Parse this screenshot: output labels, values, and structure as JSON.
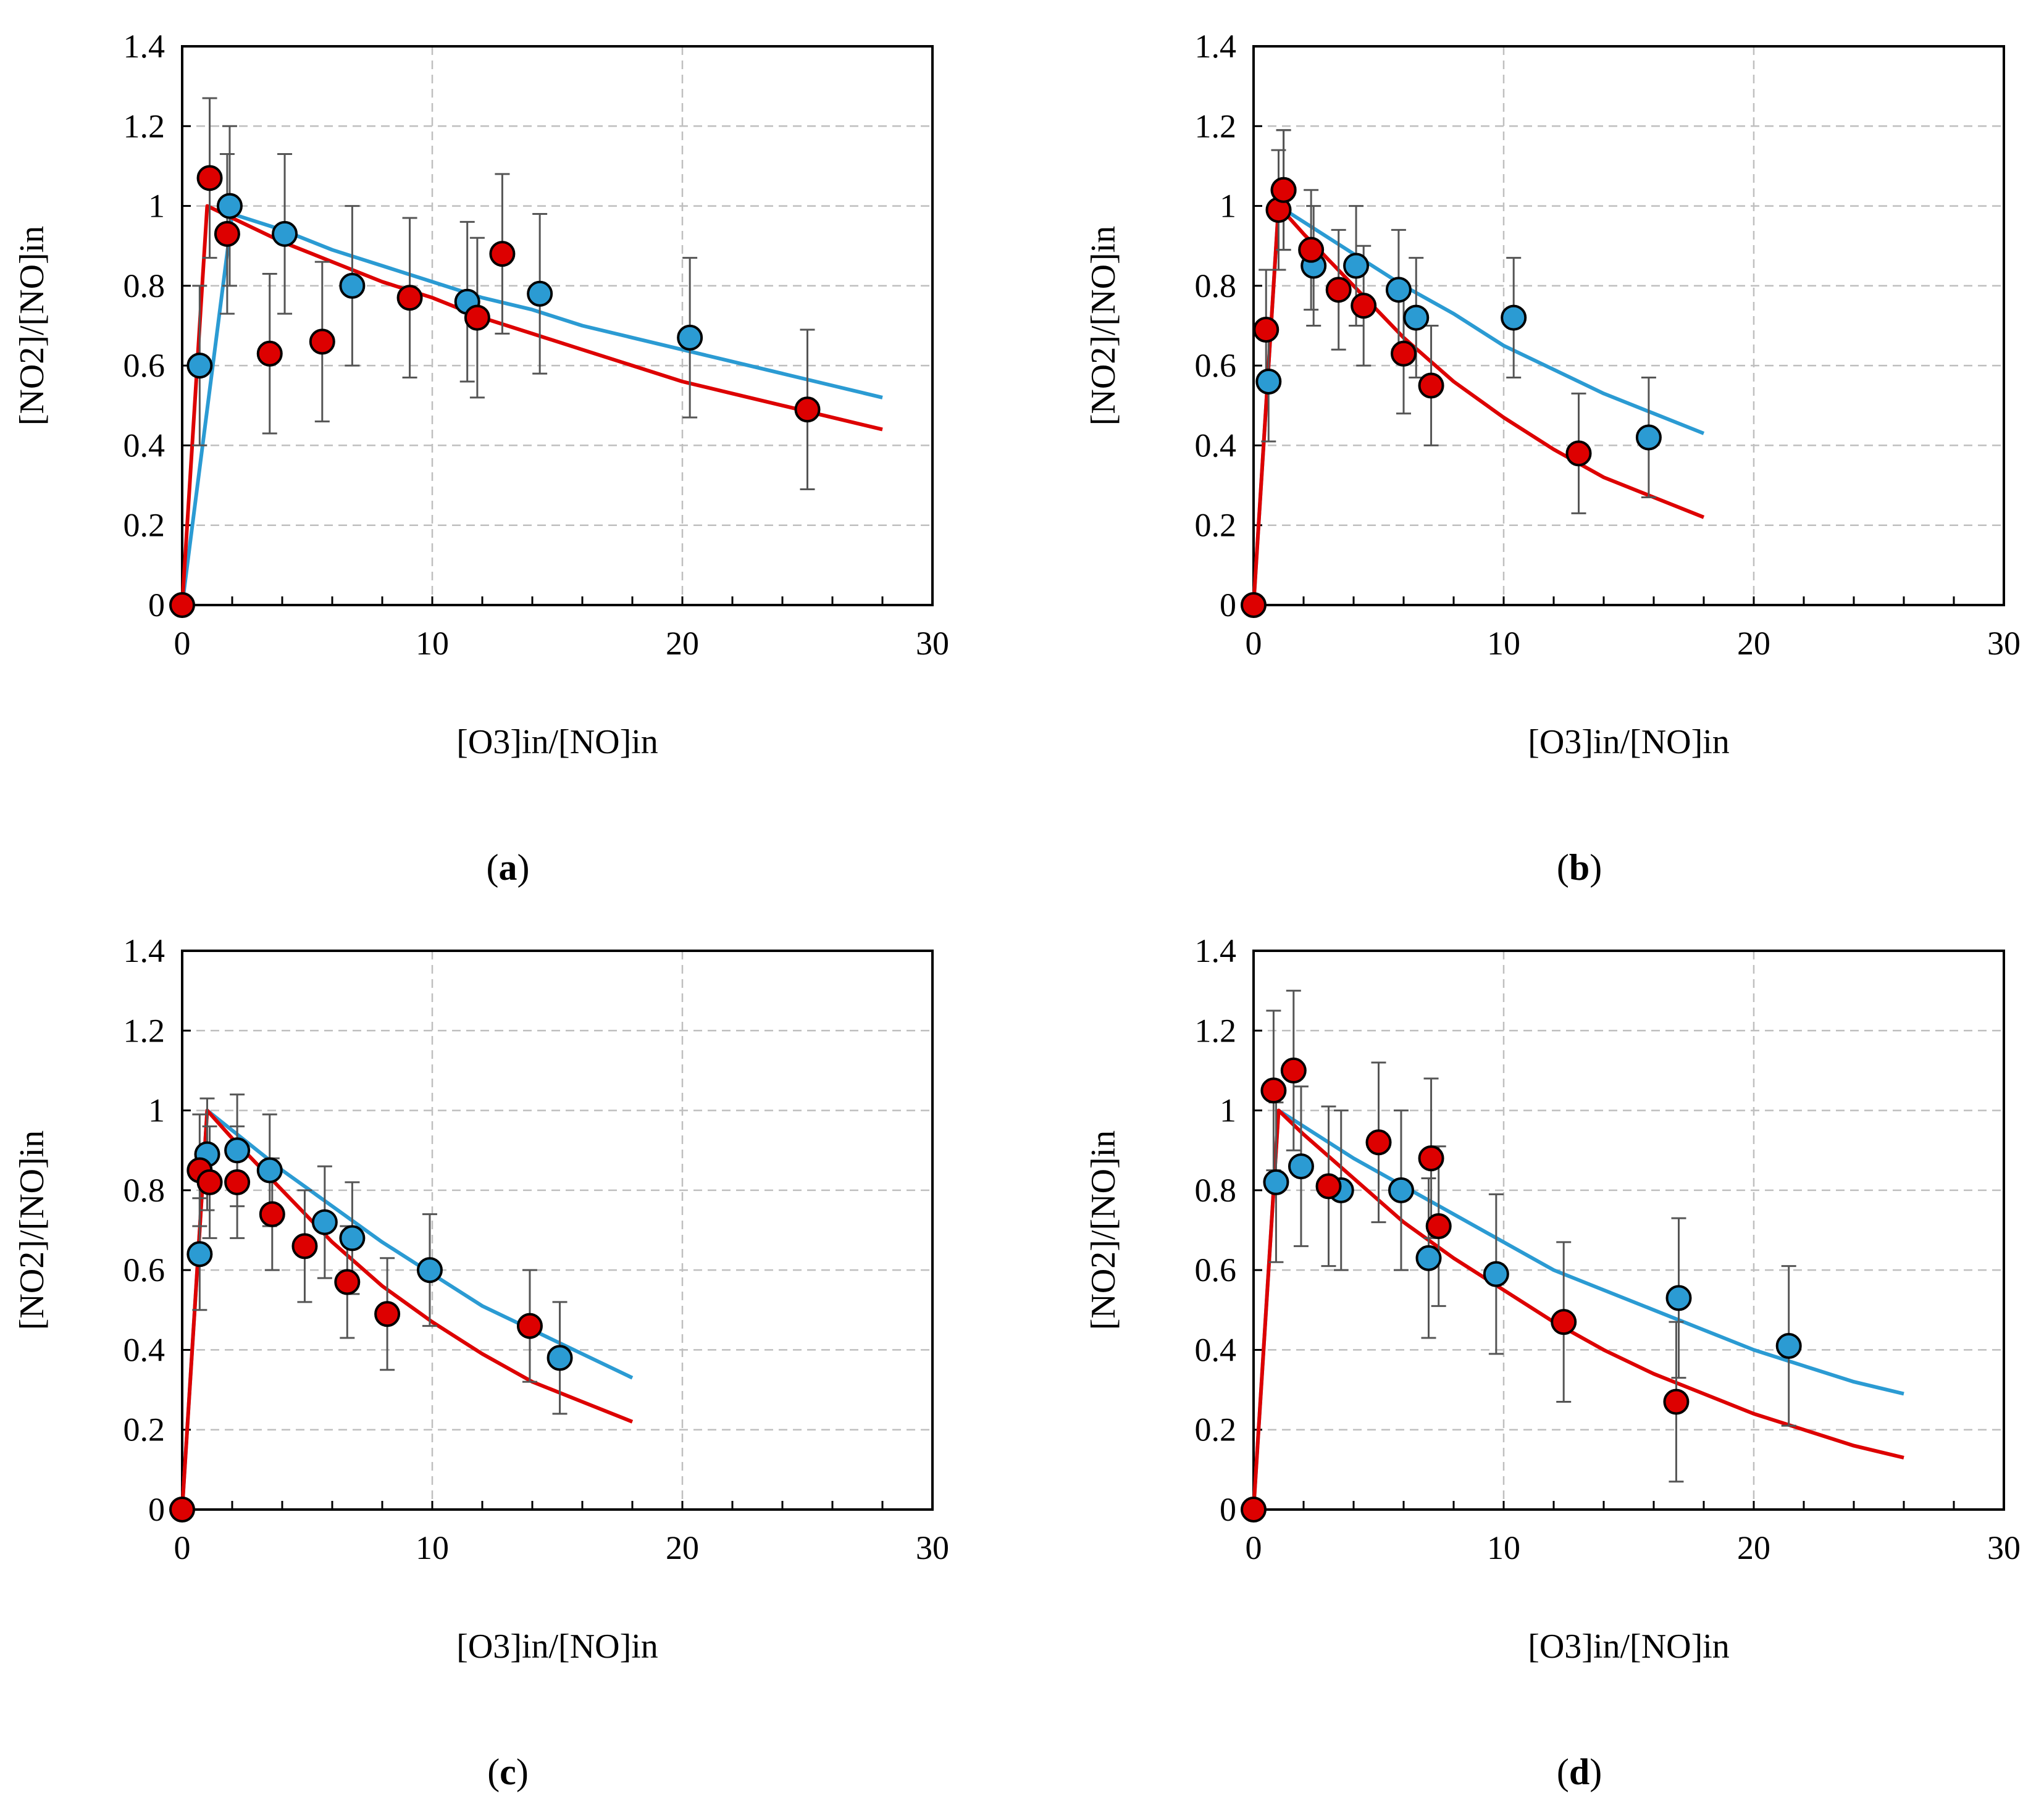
{
  "colors": {
    "red": "#dd0000",
    "blue": "#2b9bd3",
    "grid": "#bfbfbf",
    "errorbar": "#555555",
    "axis": "#000000"
  },
  "chart_data": [
    {
      "type": "scatter",
      "panel": "a",
      "panel_label": "a",
      "xlabel": "[O3]in/[NO]in",
      "ylabel": "[NO2]/[NO]in",
      "xlim": [
        0,
        30
      ],
      "ylim": [
        0,
        1.4
      ],
      "xticks": [
        "0",
        "10",
        "20",
        "30"
      ],
      "yticks": [
        "0",
        "0.2",
        "0.4",
        "0.6",
        "0.8",
        "1",
        "1.2",
        "1.4"
      ],
      "lines": [
        {
          "name": "model-blue",
          "color": "blue",
          "x": [
            0,
            2,
            4,
            6,
            8,
            10,
            12,
            14,
            16,
            18,
            20,
            22,
            24,
            26,
            28
          ],
          "y": [
            0,
            0.98,
            0.94,
            0.89,
            0.85,
            0.81,
            0.77,
            0.74,
            0.7,
            0.67,
            0.64,
            0.61,
            0.58,
            0.55,
            0.52
          ]
        },
        {
          "name": "model-red",
          "color": "red",
          "x": [
            0,
            1,
            2,
            4,
            6,
            8,
            10,
            12,
            14,
            16,
            18,
            20,
            22,
            24,
            26,
            28
          ],
          "y": [
            0,
            1.0,
            0.97,
            0.91,
            0.86,
            0.81,
            0.77,
            0.72,
            0.68,
            0.64,
            0.6,
            0.56,
            0.53,
            0.5,
            0.47,
            0.44
          ]
        }
      ],
      "series": [
        {
          "name": "measured-blue",
          "color": "blue",
          "points": [
            [
              0.7,
              0.6,
              0.2
            ],
            [
              1.9,
              1.0,
              0.2
            ],
            [
              4.1,
              0.93,
              0.2
            ],
            [
              6.8,
              0.8,
              0.2
            ],
            [
              11.4,
              0.76,
              0.2
            ],
            [
              14.3,
              0.78,
              0.2
            ],
            [
              20.3,
              0.67,
              0.2
            ]
          ]
        },
        {
          "name": "measured-red",
          "color": "red",
          "points": [
            [
              0,
              0,
              0
            ],
            [
              1.1,
              1.07,
              0.2
            ],
            [
              1.8,
              0.93,
              0.2
            ],
            [
              3.5,
              0.63,
              0.2
            ],
            [
              5.6,
              0.66,
              0.2
            ],
            [
              9.1,
              0.77,
              0.2
            ],
            [
              11.8,
              0.72,
              0.2
            ],
            [
              12.8,
              0.88,
              0.2
            ],
            [
              25.0,
              0.49,
              0.2
            ]
          ]
        }
      ]
    },
    {
      "type": "scatter",
      "panel": "b",
      "panel_label": "b",
      "xlabel": "[O3]in/[NO]in",
      "ylabel": "[NO2]/[NO]in",
      "xlim": [
        0,
        30
      ],
      "ylim": [
        0,
        1.4
      ],
      "xticks": [
        "0",
        "10",
        "20",
        "30"
      ],
      "yticks": [
        "0",
        "0.2",
        "0.4",
        "0.6",
        "0.8",
        "1",
        "1.2",
        "1.4"
      ],
      "lines": [
        {
          "name": "model-blue",
          "color": "blue",
          "x": [
            0,
            1,
            2,
            4,
            6,
            8,
            10,
            12,
            14,
            16,
            18
          ],
          "y": [
            0,
            1.0,
            0.96,
            0.88,
            0.8,
            0.73,
            0.65,
            0.59,
            0.53,
            0.48,
            0.43
          ]
        },
        {
          "name": "model-red",
          "color": "red",
          "x": [
            0,
            1,
            2,
            4,
            6,
            8,
            10,
            12,
            14,
            16,
            18
          ],
          "y": [
            0,
            1.0,
            0.93,
            0.8,
            0.67,
            0.56,
            0.47,
            0.39,
            0.32,
            0.27,
            0.22
          ]
        }
      ],
      "series": [
        {
          "name": "measured-blue",
          "color": "blue",
          "points": [
            [
              0.6,
              0.56,
              0.15
            ],
            [
              1.2,
              1.04,
              0.15
            ],
            [
              2.4,
              0.85,
              0.15
            ],
            [
              4.1,
              0.85,
              0.15
            ],
            [
              5.8,
              0.79,
              0.15
            ],
            [
              6.5,
              0.72,
              0.15
            ],
            [
              10.4,
              0.72,
              0.15
            ],
            [
              15.8,
              0.42,
              0.15
            ]
          ]
        },
        {
          "name": "measured-red",
          "color": "red",
          "points": [
            [
              0,
              0,
              0
            ],
            [
              0.5,
              0.69,
              0.15
            ],
            [
              1.0,
              0.99,
              0.15
            ],
            [
              1.2,
              1.04,
              0.15
            ],
            [
              2.3,
              0.89,
              0.15
            ],
            [
              3.4,
              0.79,
              0.15
            ],
            [
              4.4,
              0.75,
              0.15
            ],
            [
              6.0,
              0.63,
              0.15
            ],
            [
              7.1,
              0.55,
              0.15
            ],
            [
              13.0,
              0.38,
              0.15
            ]
          ]
        }
      ]
    },
    {
      "type": "scatter",
      "panel": "c",
      "panel_label": "c",
      "xlabel": "[O3]in/[NO]in",
      "ylabel": "[NO2]/[NO]in",
      "xlim": [
        0,
        30
      ],
      "ylim": [
        0,
        1.4
      ],
      "xticks": [
        "0",
        "10",
        "20",
        "30"
      ],
      "yticks": [
        "0",
        "0.2",
        "0.4",
        "0.6",
        "0.8",
        "1",
        "1.2",
        "1.4"
      ],
      "lines": [
        {
          "name": "model-blue",
          "color": "blue",
          "x": [
            0,
            1,
            2,
            4,
            6,
            8,
            10,
            12,
            14,
            16,
            18
          ],
          "y": [
            0,
            1.0,
            0.95,
            0.85,
            0.76,
            0.67,
            0.59,
            0.51,
            0.45,
            0.39,
            0.33
          ]
        },
        {
          "name": "model-red",
          "color": "red",
          "x": [
            0,
            1,
            2,
            4,
            6,
            8,
            10,
            12,
            14,
            16,
            18
          ],
          "y": [
            0,
            1.0,
            0.93,
            0.8,
            0.67,
            0.56,
            0.47,
            0.39,
            0.32,
            0.27,
            0.22
          ]
        }
      ],
      "series": [
        {
          "name": "measured-blue",
          "color": "blue",
          "points": [
            [
              0.7,
              0.64,
              0.14
            ],
            [
              1.0,
              0.89,
              0.14
            ],
            [
              2.2,
              0.9,
              0.14
            ],
            [
              3.5,
              0.85,
              0.14
            ],
            [
              5.7,
              0.72,
              0.14
            ],
            [
              6.8,
              0.68,
              0.14
            ],
            [
              9.9,
              0.6,
              0.14
            ],
            [
              15.1,
              0.38,
              0.14
            ]
          ]
        },
        {
          "name": "measured-red",
          "color": "red",
          "points": [
            [
              0,
              0,
              0
            ],
            [
              0.7,
              0.85,
              0.14
            ],
            [
              1.1,
              0.82,
              0.14
            ],
            [
              2.2,
              0.82,
              0.14
            ],
            [
              3.6,
              0.74,
              0.14
            ],
            [
              4.9,
              0.66,
              0.14
            ],
            [
              6.6,
              0.57,
              0.14
            ],
            [
              8.2,
              0.49,
              0.14
            ],
            [
              13.9,
              0.46,
              0.14
            ]
          ]
        }
      ]
    },
    {
      "type": "scatter",
      "panel": "d",
      "panel_label": "d",
      "xlabel": "[O3]in/[NO]in",
      "ylabel": "[NO2]/[NO]in",
      "xlim": [
        0,
        30
      ],
      "ylim": [
        0,
        1.4
      ],
      "xticks": [
        "0",
        "10",
        "20",
        "30"
      ],
      "yticks": [
        "0",
        "0.2",
        "0.4",
        "0.6",
        "0.8",
        "1",
        "1.2",
        "1.4"
      ],
      "lines": [
        {
          "name": "model-blue",
          "color": "blue",
          "x": [
            0,
            1,
            2,
            4,
            6,
            8,
            10,
            12,
            14,
            16,
            18,
            20,
            22,
            24,
            26
          ],
          "y": [
            0,
            1.0,
            0.96,
            0.88,
            0.81,
            0.74,
            0.67,
            0.6,
            0.55,
            0.5,
            0.45,
            0.4,
            0.36,
            0.32,
            0.29
          ]
        },
        {
          "name": "model-red",
          "color": "red",
          "x": [
            0,
            1,
            2,
            4,
            6,
            8,
            10,
            12,
            14,
            16,
            18,
            20,
            22,
            24,
            26
          ],
          "y": [
            0,
            1.0,
            0.94,
            0.83,
            0.72,
            0.63,
            0.55,
            0.47,
            0.4,
            0.34,
            0.29,
            0.24,
            0.2,
            0.16,
            0.13
          ]
        }
      ],
      "series": [
        {
          "name": "measured-blue",
          "color": "blue",
          "points": [
            [
              0.9,
              0.82,
              0.2
            ],
            [
              1.9,
              0.86,
              0.2
            ],
            [
              3.5,
              0.8,
              0.2
            ],
            [
              5.9,
              0.8,
              0.2
            ],
            [
              7.0,
              0.63,
              0.2
            ],
            [
              9.7,
              0.59,
              0.2
            ],
            [
              17.0,
              0.53,
              0.2
            ],
            [
              21.4,
              0.41,
              0.2
            ]
          ]
        },
        {
          "name": "measured-red",
          "color": "red",
          "points": [
            [
              0,
              0,
              0
            ],
            [
              0.8,
              1.05,
              0.2
            ],
            [
              1.6,
              1.1,
              0.2
            ],
            [
              3.0,
              0.81,
              0.2
            ],
            [
              5.0,
              0.92,
              0.2
            ],
            [
              7.1,
              0.88,
              0.2
            ],
            [
              7.4,
              0.71,
              0.2
            ],
            [
              12.4,
              0.47,
              0.2
            ],
            [
              16.9,
              0.27,
              0.2
            ]
          ]
        }
      ]
    }
  ]
}
